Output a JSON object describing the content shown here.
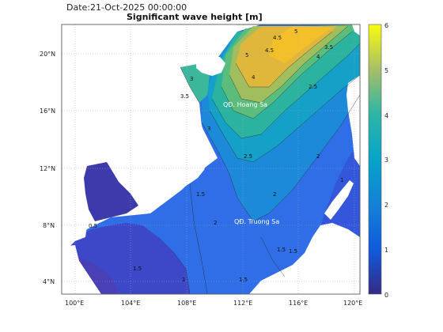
{
  "header": {
    "date_label": "Date:21-Oct-2025 00:00:00",
    "title": "Significant wave height [m]"
  },
  "axes": {
    "x_ticks": [
      "100°E",
      "104°E",
      "108°E",
      "112°E",
      "116°E",
      "120°E"
    ],
    "y_ticks": [
      "20°N",
      "16°N",
      "12°N",
      "8°N",
      "4°N"
    ]
  },
  "colorbar": {
    "ticks": [
      "6",
      "5",
      "4",
      "3",
      "2",
      "1",
      "0"
    ],
    "min": 0,
    "max": 6
  },
  "places": {
    "hoang_sa": "QĐ. Hoang Sa",
    "truong_sa": "QĐ. Truong Sa"
  },
  "contour_labels": {
    "c_5": "5",
    "c_4_5": "4.5",
    "c_4": "4",
    "c_3_5": "3.5",
    "c_3": "3",
    "c_2_5": "2.5",
    "c_2": "2",
    "c_1_5": "1.5",
    "c_1": "1",
    "c_0_5": "0.5"
  },
  "colors": {
    "land": "#ffffff",
    "colormap": "parula"
  }
}
